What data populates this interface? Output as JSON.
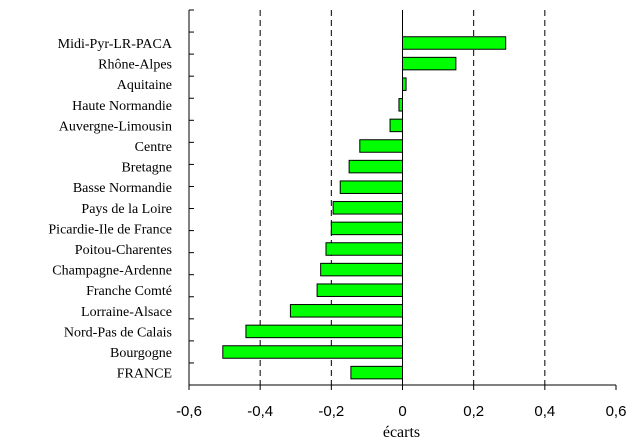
{
  "chart_data": {
    "type": "bar",
    "orientation": "horizontal",
    "categories": [
      "Midi-Pyr-LR-PACA",
      "Rhône-Alpes",
      "Aquitaine",
      "Haute Normandie",
      "Auvergne-Limousin",
      "Centre",
      "Bretagne",
      "Basse Normandie",
      "Pays de la Loire",
      "Picardie-Ile de France",
      "Poitou-Charentes",
      "Champagne-Ardenne",
      "Franche Comté",
      "Lorraine-Alsace",
      "Nord-Pas de Calais",
      "Bourgogne",
      "FRANCE"
    ],
    "values": [
      0.29,
      0.15,
      0.01,
      -0.01,
      -0.035,
      -0.12,
      -0.15,
      -0.175,
      -0.195,
      -0.2,
      -0.215,
      -0.23,
      -0.24,
      -0.315,
      -0.44,
      -0.505,
      -0.145
    ],
    "xlabel": "écarts",
    "xlim": [
      -0.6,
      0.6
    ],
    "x_ticks": [
      -0.6,
      -0.4,
      -0.2,
      0,
      0.2,
      0.4,
      0.6
    ],
    "x_tick_labels": [
      "-0,6",
      "-0,4",
      "-0,2",
      "0",
      "0,2",
      "0,4",
      "0,6"
    ],
    "grid": "vertical dashed at ±0.2, ±0.4",
    "dashed_grid_at": [
      -0.4,
      -0.2,
      0.2,
      0.4
    ],
    "bar_color": "#00ff00",
    "bar_edge_color": "#000000"
  }
}
